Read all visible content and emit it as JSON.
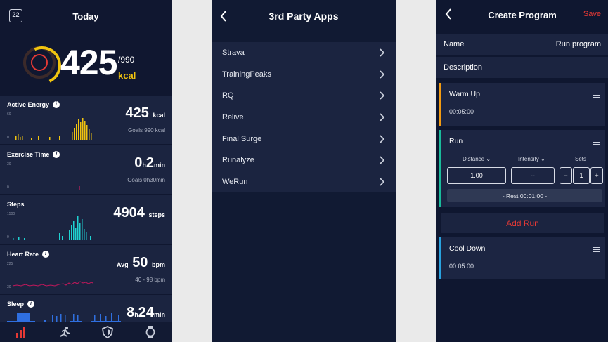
{
  "today": {
    "title": "Today",
    "calendar_icon_text": "22",
    "calories_value": "425",
    "calories_goal": "/990",
    "calories_unit": "kcal",
    "cards": [
      {
        "label": "Active Energy",
        "value": "425",
        "unit": "kcal",
        "sub": "Goals 990 kcal",
        "ymax": "60",
        "ymin": "0"
      },
      {
        "label": "Exercise Time",
        "value_h": "0",
        "value_m": "2",
        "unit_h": "h",
        "unit_m": "min",
        "sub": "Goals 0h30min",
        "ymax": "30",
        "ymin": "0"
      },
      {
        "label": "Steps",
        "value": "4904",
        "unit": "steps",
        "ymax": "1500",
        "ymin": "0"
      },
      {
        "label": "Heart Rate",
        "prefix": "Avg",
        "value": "50",
        "unit": "bpm",
        "sub": "40 - 98 bpm",
        "ymax": "225",
        "ymin": "30"
      },
      {
        "label": "Sleep",
        "value_h": "8",
        "value_m": "24",
        "unit_h": "h",
        "unit_m": "min"
      }
    ],
    "tabs": [
      "chart-icon",
      "running-icon",
      "shield-icon",
      "watch-icon"
    ],
    "accent": "#f1c40f"
  },
  "third_party": {
    "title": "3rd Party Apps",
    "apps": [
      "Strava",
      "TrainingPeaks",
      "RQ",
      "Relive",
      "Final Surge",
      "Runalyze",
      "WeRun"
    ]
  },
  "program": {
    "title": "Create Program",
    "save_label": "Save",
    "name_label": "Name",
    "name_value": "Run program",
    "description_label": "Description",
    "warmup": {
      "title": "Warm Up",
      "time": "00:05:00",
      "color": "#f39c12"
    },
    "run": {
      "title": "Run",
      "distance_label": "Distance",
      "intensity_label": "Intensity",
      "sets_label": "Sets",
      "distance_value": "1.00",
      "intensity_value": "--",
      "sets_value": "1",
      "minus": "−",
      "plus": "+",
      "rest": "- Rest 00:01:00 -",
      "color": "#1abc9c"
    },
    "add_run": "Add Run",
    "cooldown": {
      "title": "Cool Down",
      "time": "00:05:00",
      "color": "#29a3e0"
    },
    "danger_color": "#e53935"
  }
}
